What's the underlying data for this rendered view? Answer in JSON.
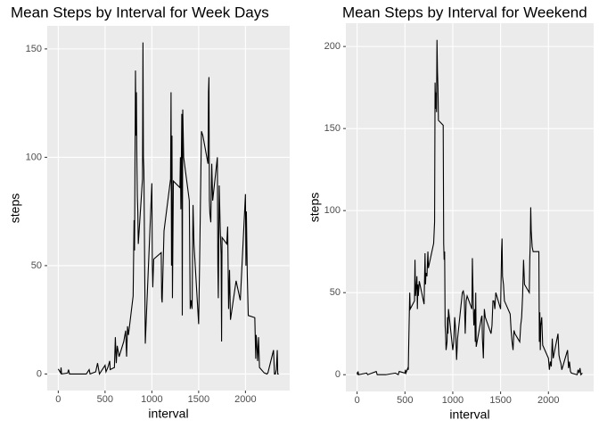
{
  "chart_data": [
    {
      "type": "line",
      "title": "Mean Steps by Interval for Week Days",
      "xlabel": "interval",
      "ylabel": "steps",
      "x": [
        0,
        25,
        30,
        35,
        100,
        110,
        120,
        300,
        330,
        340,
        400,
        420,
        440,
        500,
        510,
        530,
        550,
        555,
        600,
        610,
        620,
        630,
        650,
        700,
        720,
        730,
        740,
        750,
        800,
        810,
        815,
        825,
        830,
        835,
        840,
        845,
        850,
        855,
        900,
        905,
        910,
        915,
        930,
        940,
        1000,
        1005,
        1010,
        1020,
        1100,
        1105,
        1110,
        1130,
        1200,
        1205,
        1210,
        1215,
        1220,
        1230,
        1300,
        1305,
        1310,
        1320,
        1325,
        1330,
        1340,
        1400,
        1410,
        1420,
        1430,
        1440,
        1450,
        1500,
        1510,
        1530,
        1545,
        1600,
        1605,
        1610,
        1615,
        1620,
        1630,
        1640,
        1650,
        1700,
        1705,
        1710,
        1720,
        1730,
        1740,
        1745,
        1750,
        1800,
        1810,
        1820,
        1830,
        1840,
        1900,
        1930,
        1945,
        2000,
        2005,
        2010,
        2020,
        2030,
        2100,
        2110,
        2115,
        2125,
        2130,
        2140,
        2150,
        2200,
        2230,
        2240,
        2300,
        2310,
        2320,
        2330,
        2340,
        2345,
        2355
      ],
      "series": [
        {
          "color": "#000000",
          "values": [
            2.3,
            0.5,
            3,
            0,
            0.4,
            2,
            0,
            0,
            2,
            0,
            1,
            5,
            0,
            4,
            1,
            3,
            6,
            2,
            3,
            17,
            5,
            13,
            8,
            15,
            20,
            8,
            22,
            18,
            36,
            71,
            57,
            140,
            110,
            130,
            98,
            82,
            75,
            60,
            90,
            153,
            100,
            94,
            14,
            25,
            88,
            50,
            40,
            53,
            56,
            35,
            33,
            66,
            90,
            130,
            50,
            110,
            35,
            89,
            86,
            100,
            76,
            120,
            27,
            122,
            100,
            80,
            30,
            34,
            30,
            78,
            60,
            23,
            51,
            112,
            110,
            97,
            130,
            137,
            80,
            74,
            70,
            97,
            80,
            100,
            50,
            35,
            87,
            68,
            55,
            15,
            63,
            60,
            68,
            30,
            48,
            25,
            43,
            37,
            34,
            83,
            50,
            75,
            45,
            27,
            26,
            7,
            18,
            11,
            6,
            17,
            3,
            0.5,
            0,
            0.5,
            11,
            0,
            0,
            2,
            11,
            0,
            0
          ]
        }
      ],
      "xlim": [
        -117.75,
        2472.75
      ],
      "ylim": [
        -7.65,
        160.65
      ],
      "xticks": [
        0,
        500,
        1000,
        1500,
        2000
      ],
      "yticks": [
        0,
        50,
        100,
        150
      ],
      "grid": true
    },
    {
      "type": "line",
      "title": "Mean Steps by Interval for Weekend",
      "xlabel": "interval",
      "ylabel": "steps",
      "x": [
        0,
        5,
        10,
        15,
        100,
        110,
        200,
        210,
        300,
        400,
        430,
        440,
        500,
        505,
        510,
        530,
        535,
        540,
        550,
        555,
        600,
        605,
        610,
        620,
        625,
        630,
        635,
        640,
        650,
        700,
        710,
        715,
        720,
        730,
        740,
        745,
        800,
        810,
        815,
        820,
        825,
        830,
        835,
        840,
        845,
        850,
        900,
        905,
        910,
        915,
        920,
        925,
        930,
        940,
        945,
        950,
        955,
        1000,
        1010,
        1020,
        1030,
        1040,
        1050,
        1100,
        1110,
        1120,
        1130,
        1140,
        1150,
        1200,
        1205,
        1210,
        1220,
        1230,
        1235,
        1240,
        1245,
        1300,
        1305,
        1310,
        1320,
        1330,
        1340,
        1400,
        1410,
        1420,
        1430,
        1440,
        1450,
        1500,
        1510,
        1515,
        1520,
        1530,
        1540,
        1600,
        1610,
        1620,
        1630,
        1640,
        1650,
        1700,
        1710,
        1720,
        1730,
        1740,
        1750,
        1800,
        1805,
        1810,
        1815,
        1820,
        1830,
        1840,
        1900,
        1905,
        1910,
        1915,
        1920,
        1930,
        1940,
        2000,
        2010,
        2020,
        2030,
        2040,
        2050,
        2100,
        2110,
        2120,
        2130,
        2140,
        2200,
        2210,
        2220,
        2230,
        2240,
        2300,
        2310,
        2320,
        2330,
        2340,
        2355
      ],
      "series": [
        {
          "color": "#000000",
          "values": [
            1.5,
            0,
            2,
            0,
            1,
            0,
            2,
            0,
            0,
            1,
            0,
            2,
            1,
            3,
            1,
            4,
            3,
            20,
            50,
            40,
            45,
            70,
            48,
            55,
            60,
            40,
            55,
            48,
            57,
            43,
            74,
            55,
            62,
            60,
            75,
            65,
            80,
            93,
            178,
            162,
            172,
            160,
            204,
            185,
            175,
            155,
            152,
            80,
            70,
            75,
            30,
            25,
            15,
            20,
            35,
            25,
            40,
            15,
            20,
            35,
            27,
            9,
            22,
            50,
            51,
            48,
            25,
            45,
            48,
            40,
            71,
            55,
            30,
            40,
            20,
            50,
            17,
            35,
            36,
            22,
            10,
            40,
            35,
            25,
            30,
            45,
            45,
            40,
            50,
            40,
            75,
            83,
            60,
            55,
            45,
            37,
            27,
            20,
            15,
            27,
            25,
            20,
            30,
            35,
            48,
            70,
            55,
            50,
            70,
            80,
            102,
            88,
            78,
            75,
            75,
            20,
            38,
            15,
            30,
            35,
            18,
            10,
            3,
            8,
            5,
            22,
            10,
            25,
            12,
            9,
            7,
            3,
            15,
            4,
            8,
            2,
            1,
            0,
            3,
            1,
            4,
            0,
            1
          ]
        }
      ],
      "xlim": [
        -117.75,
        2472.75
      ],
      "ylim": [
        -10.2,
        214.2
      ],
      "xticks": [
        0,
        500,
        1000,
        1500,
        2000
      ],
      "yticks": [
        0,
        50,
        100,
        150,
        200
      ],
      "grid": true
    }
  ]
}
